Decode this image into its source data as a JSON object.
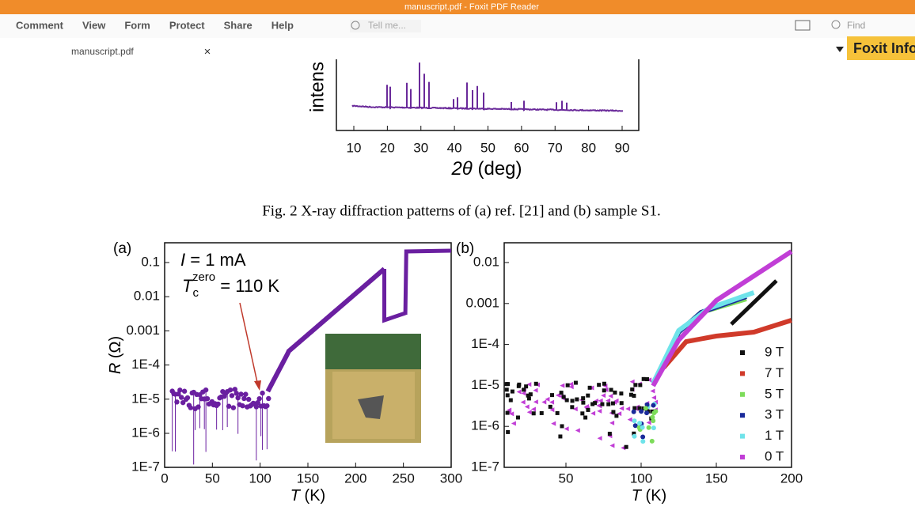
{
  "window": {
    "title": "manuscript.pdf - Foxit PDF Reader"
  },
  "menu": [
    "Comment",
    "View",
    "Form",
    "Protect",
    "Share",
    "Help"
  ],
  "search_hint": "Tell me...",
  "find": "Find",
  "tab": "manuscript.pdf",
  "banner": "Foxit Info",
  "xrd": {
    "y_label": "intens",
    "x_ticks": [
      "10",
      "20",
      "30",
      "40",
      "50",
      "60",
      "70",
      "80",
      "90"
    ],
    "x_label_symbol": "2θ",
    "x_label_unit": " (deg)"
  },
  "caption": "Fig. 2 X-ray diffraction patterns of (a) ref. [21] and (b) sample S1.",
  "panel_a": {
    "tag": "(a)",
    "current_symbol": "I",
    "current_text": " = 1 mA",
    "tc_symbol": "T",
    "tc_sub": "c",
    "tc_sup": "zero",
    "tc_text": " = 110 K",
    "y_ticks": [
      "0.1",
      "0.01",
      "0.001",
      "1E-4",
      "1E-5",
      "1E-6",
      "1E-7"
    ],
    "x_ticks": [
      "0",
      "50",
      "100",
      "150",
      "200",
      "250",
      "300"
    ],
    "y_label_symbol": "R",
    "y_label_unit": " (Ω)",
    "x_label_symbol": "T",
    "x_label_unit": " (K)"
  },
  "panel_b": {
    "tag": "(b)",
    "y_ticks": [
      "0.01",
      "0.001",
      "1E-4",
      "1E-5",
      "1E-6",
      "1E-7"
    ],
    "x_ticks": [
      "50",
      "100",
      "150",
      "200"
    ],
    "x_label_symbol": "T",
    "x_label_unit": " (K)",
    "legend": [
      "9 T",
      "7 T",
      "5 T",
      "3 T",
      "1 T",
      "0 T"
    ]
  }
}
